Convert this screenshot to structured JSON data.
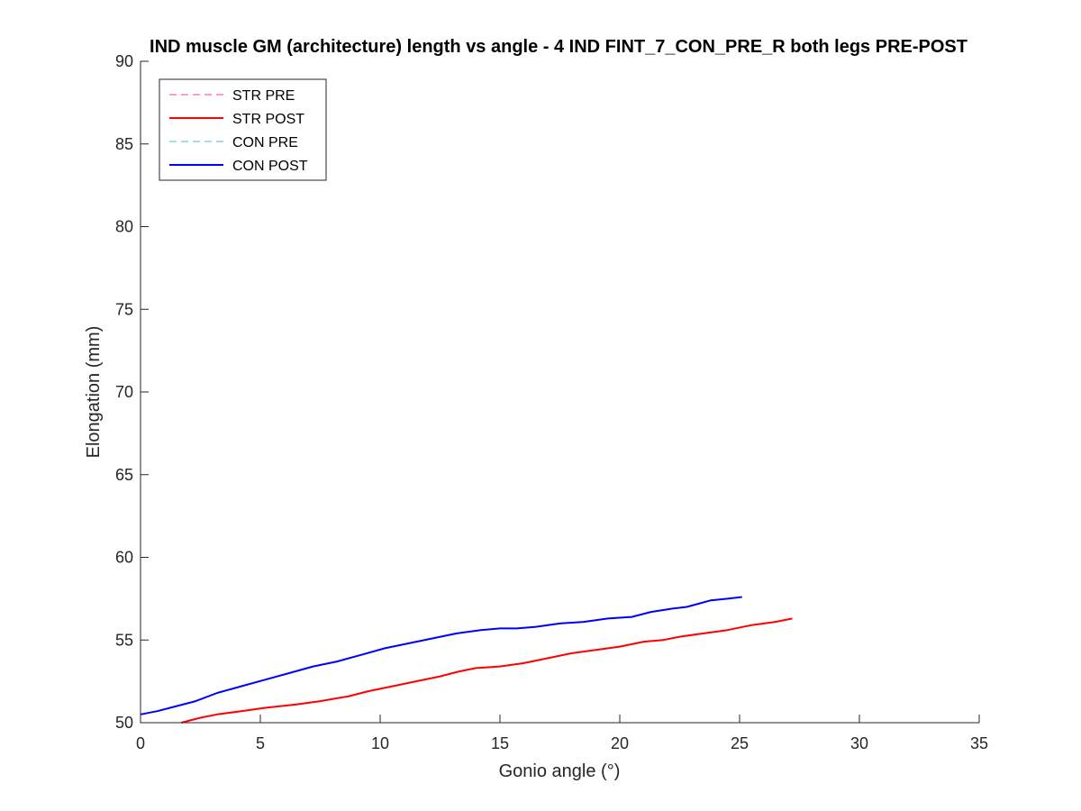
{
  "chart_data": {
    "type": "line",
    "title": "IND muscle GM (architecture) length vs angle - 4 IND FINT_7_CON_PRE_R both legs PRE-POST",
    "xlabel": "Gonio angle (°)",
    "ylabel": "Elongation (mm)",
    "xlim": [
      0,
      35
    ],
    "ylim": [
      50,
      90
    ],
    "xticks": [
      0,
      5,
      10,
      15,
      20,
      25,
      30,
      35
    ],
    "yticks": [
      50,
      55,
      60,
      65,
      70,
      75,
      80,
      85,
      90
    ],
    "grid": false,
    "legend_position": "top-left",
    "series": [
      {
        "name": "STR PRE",
        "color": "#ffa0b4",
        "dash": true,
        "x": [],
        "y": []
      },
      {
        "name": "STR POST",
        "color": "#ff0000",
        "dash": false,
        "x": [
          1.7,
          2.5,
          3.2,
          4.2,
          5.2,
          6.5,
          7.5,
          8.7,
          9.5,
          10.5,
          11.5,
          12.5,
          13.3,
          14.0,
          15.0,
          16.0,
          17.0,
          18.0,
          19.0,
          20.0,
          21.0,
          21.8,
          22.5,
          23.5,
          24.5,
          25.5,
          26.5,
          27.2
        ],
        "y": [
          50.0,
          50.3,
          50.5,
          50.7,
          50.9,
          51.1,
          51.3,
          51.6,
          51.9,
          52.2,
          52.5,
          52.8,
          53.1,
          53.3,
          53.4,
          53.6,
          53.9,
          54.2,
          54.4,
          54.6,
          54.9,
          55.0,
          55.2,
          55.4,
          55.6,
          55.9,
          56.1,
          56.3
        ]
      },
      {
        "name": "CON PRE",
        "color": "#a6dbe9",
        "dash": true,
        "x": [],
        "y": []
      },
      {
        "name": "CON POST",
        "color": "#0000ff",
        "dash": false,
        "x": [
          0.0,
          0.7,
          1.5,
          2.3,
          3.2,
          4.2,
          5.2,
          6.2,
          7.2,
          8.2,
          9.2,
          10.2,
          11.2,
          12.2,
          13.2,
          14.2,
          15.0,
          15.7,
          16.5,
          17.5,
          18.5,
          19.5,
          20.5,
          21.3,
          22.2,
          22.8,
          23.3,
          23.8,
          24.5,
          25.1
        ],
        "y": [
          50.5,
          50.7,
          51.0,
          51.3,
          51.8,
          52.2,
          52.6,
          53.0,
          53.4,
          53.7,
          54.1,
          54.5,
          54.8,
          55.1,
          55.4,
          55.6,
          55.7,
          55.7,
          55.8,
          56.0,
          56.1,
          56.3,
          56.4,
          56.7,
          56.9,
          57.0,
          57.2,
          57.4,
          57.5,
          57.6
        ]
      }
    ]
  }
}
